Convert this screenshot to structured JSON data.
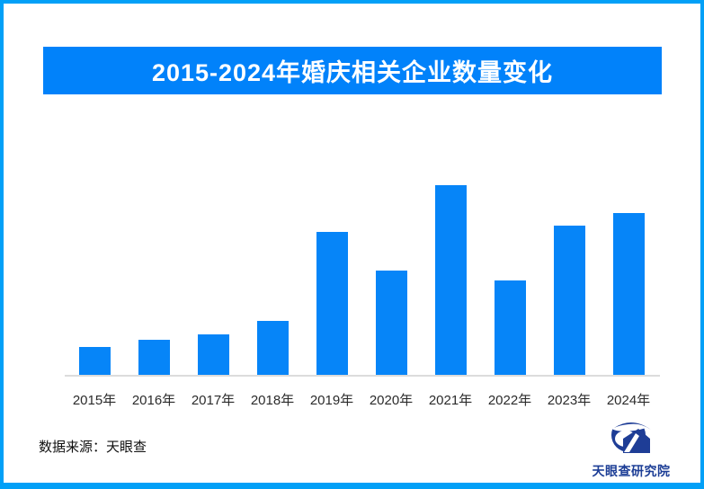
{
  "page": {
    "frame_border_color": "#02A0F7",
    "background_color": "#FFFFFF"
  },
  "banner": {
    "title": "2015-2024年婚庆相关企业数量变化",
    "bg_color": "#0182FA",
    "text_color": "#FFFFFF"
  },
  "chart_data": {
    "type": "bar",
    "title": "2015-2024年婚庆相关企业数量变化",
    "categories": [
      "2015年",
      "2016年",
      "2017年",
      "2018年",
      "2019年",
      "2020年",
      "2021年",
      "2022年",
      "2023年",
      "2024年"
    ],
    "values": [
      31,
      39,
      45,
      60,
      159,
      116,
      211,
      105,
      166,
      180
    ],
    "units": "relative height (no y-axis values shown in image)",
    "xlabel": "",
    "ylabel": "",
    "ylim": [
      0,
      220
    ],
    "grid": false,
    "legend": false,
    "bar_color": "#0685F8",
    "axis_line_color": "#DCDCDC",
    "tick_label_color": "#2B2B2B"
  },
  "footer": {
    "source": "数据来源：天眼查"
  },
  "logo": {
    "icon": "tianyancha-eye-logo",
    "text": "天眼查研究院",
    "color": "#1D3E96"
  }
}
